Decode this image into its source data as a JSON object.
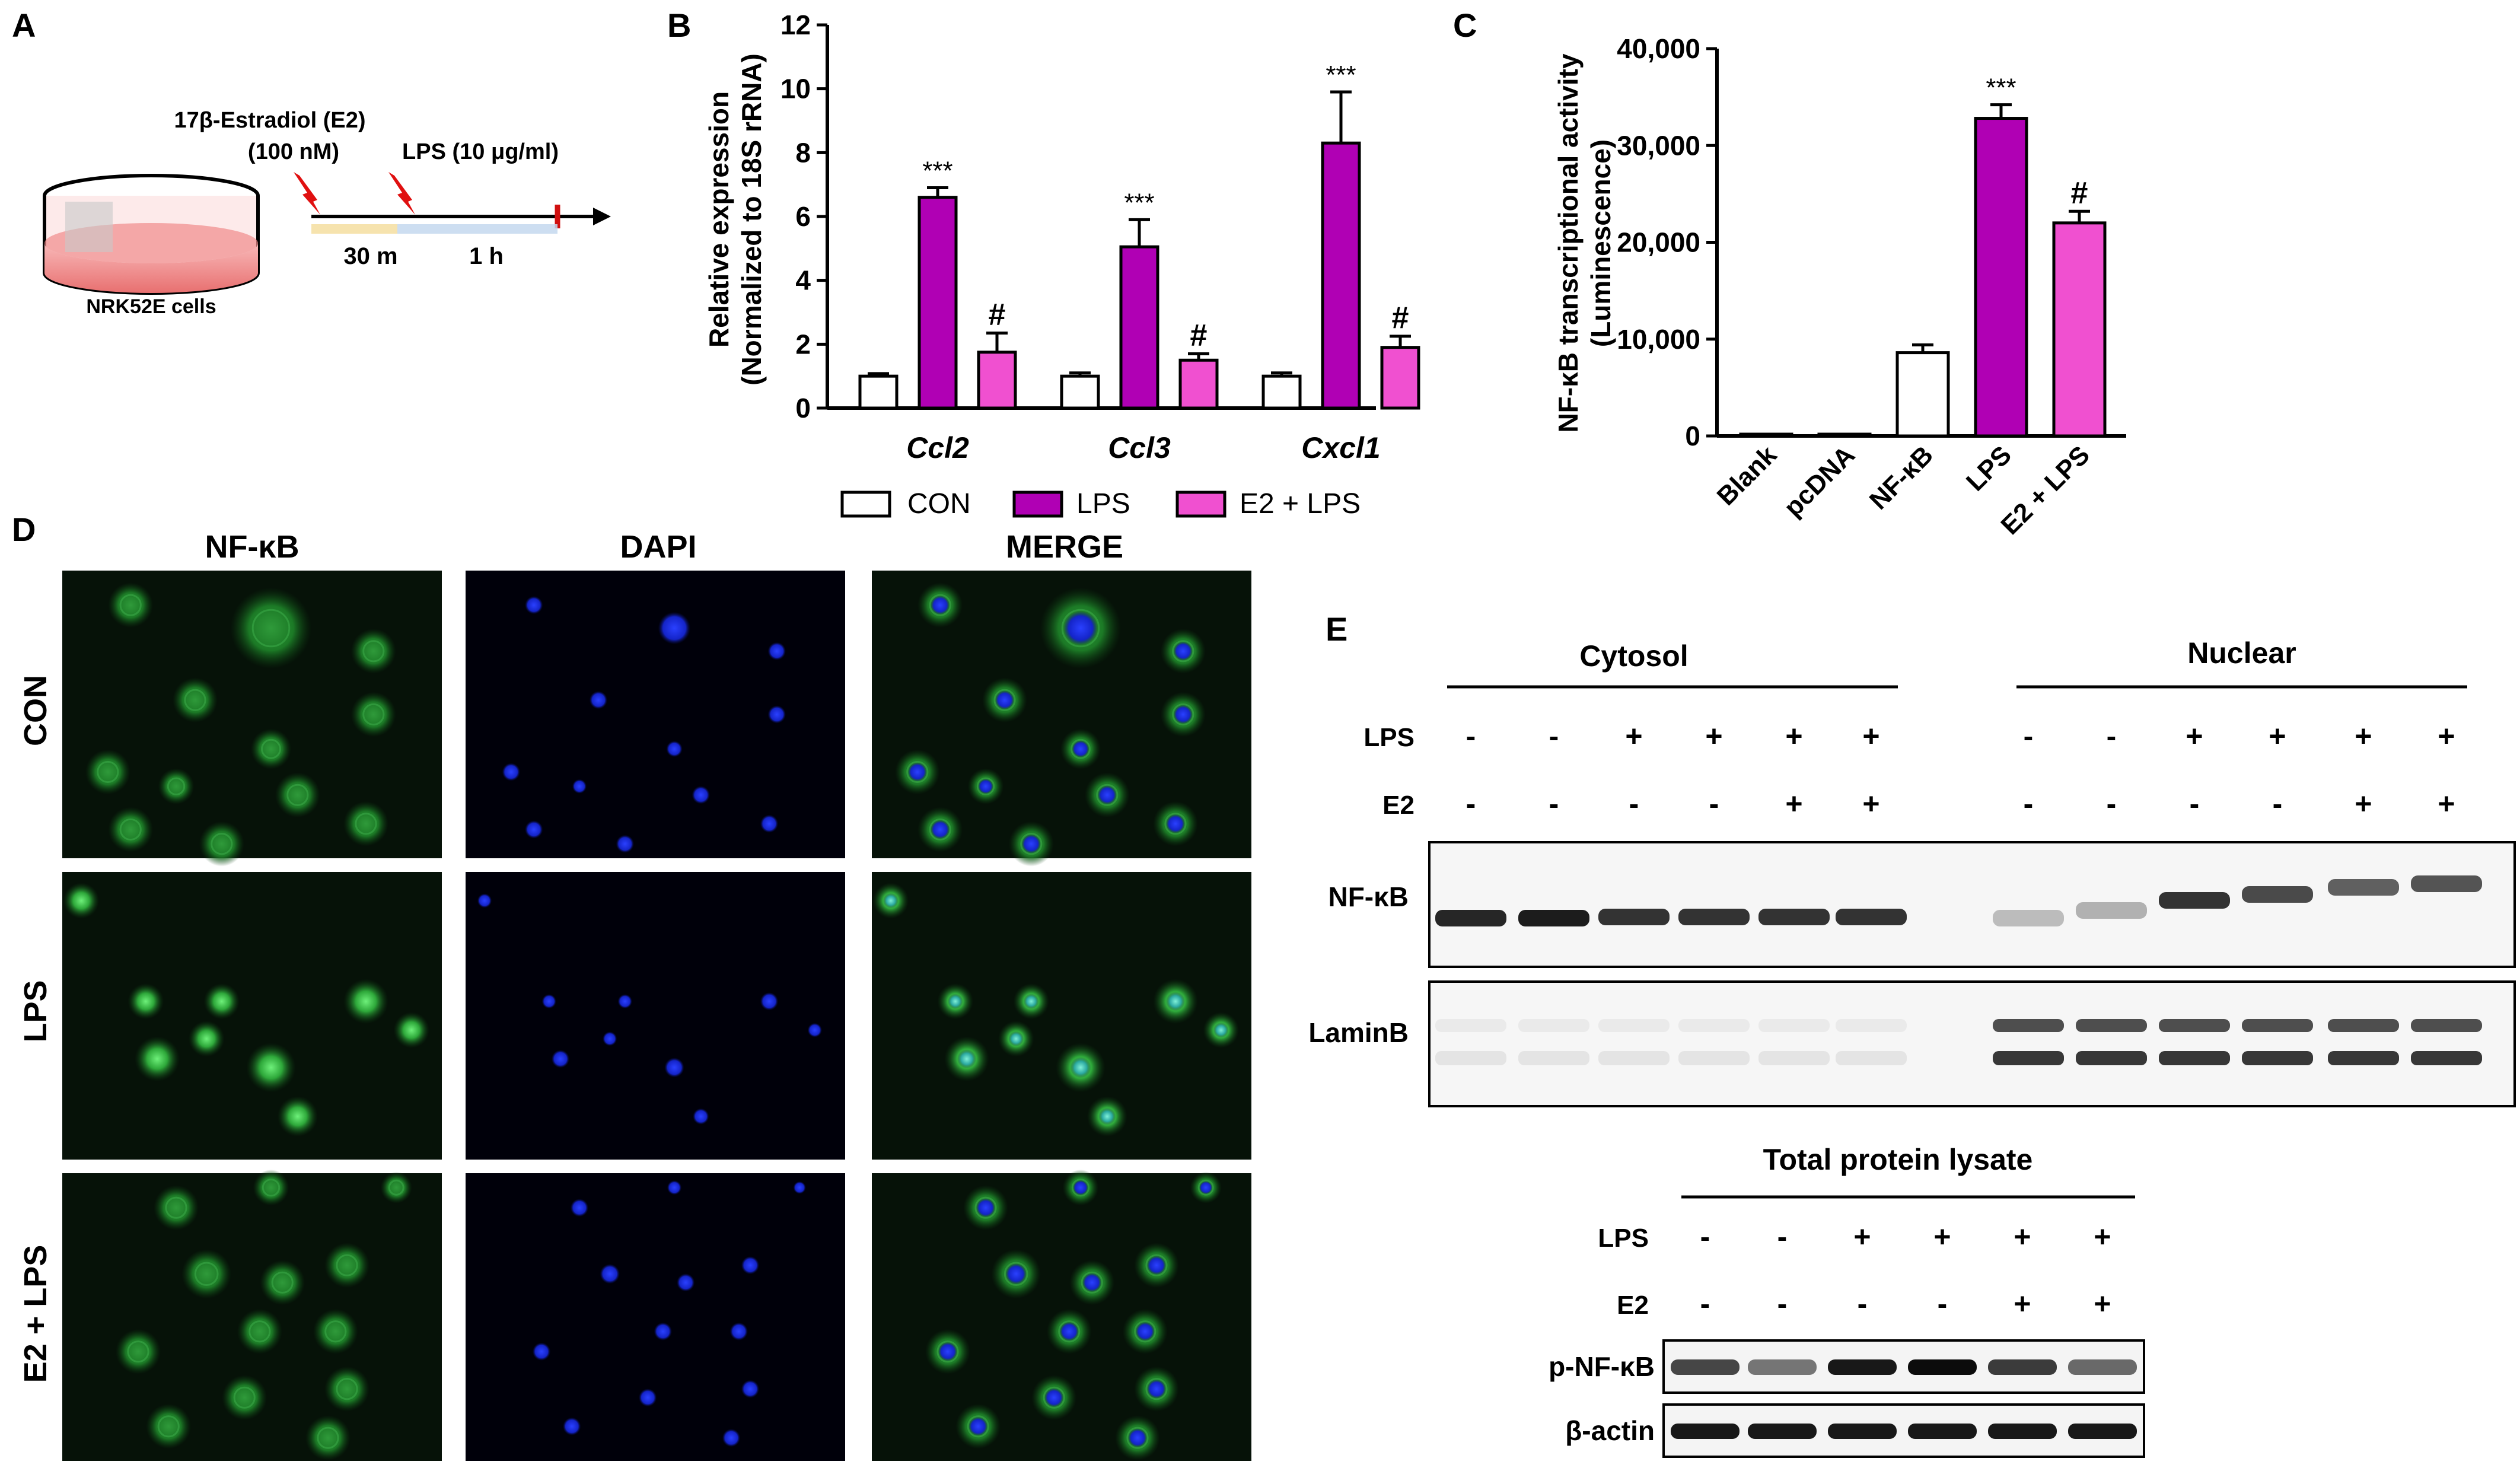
{
  "panel_labels": {
    "a": "A",
    "b": "B",
    "c": "C",
    "d": "D",
    "e": "E"
  },
  "panel_a": {
    "treatment_1_line1": "17β-Estradiol (E2)",
    "treatment_1_line2": "(100 nM)",
    "treatment_2": "LPS (10 μg/ml)",
    "time_1": "30 m",
    "time_2": "1 h",
    "cells": "NRK52E cells"
  },
  "panel_b": {
    "ylabel_line1": "Relative expression",
    "ylabel_line2": "(Normalized to 18S rRNA)",
    "legend": [
      "CON",
      "LPS",
      "E2 + LPS"
    ],
    "colors": {
      "con": "#ffffff",
      "lps": "#b000b4",
      "e2_lps": "#f050d0"
    }
  },
  "panel_c": {
    "ylabel_line1": "NF-κB transcriptional activity",
    "ylabel_line2": "(Luminescence)"
  },
  "chart_data": [
    {
      "type": "bar",
      "panel": "B",
      "categories": [
        "Ccl2",
        "Ccl3",
        "Cxcl1"
      ],
      "series": [
        {
          "name": "CON",
          "values": [
            1.0,
            1.0,
            1.0
          ],
          "errors": [
            0.08,
            0.1,
            0.1
          ],
          "labels": [
            "",
            "",
            ""
          ]
        },
        {
          "name": "LPS",
          "values": [
            6.6,
            5.05,
            8.3
          ],
          "errors": [
            0.3,
            0.85,
            1.6
          ],
          "labels": [
            "***",
            "***",
            "***"
          ]
        },
        {
          "name": "E2 + LPS",
          "values": [
            1.75,
            1.5,
            1.9
          ],
          "errors": [
            0.6,
            0.2,
            0.35
          ],
          "labels": [
            "#",
            "#",
            "#"
          ]
        }
      ],
      "ylim": [
        0,
        12
      ],
      "yticks": [
        "0",
        "2",
        "4",
        "6",
        "8",
        "10",
        "12"
      ]
    },
    {
      "type": "bar",
      "panel": "C",
      "categories": [
        "Blank",
        "pcDNA",
        "NF-κB",
        "LPS",
        "E2 + LPS"
      ],
      "values": [
        0,
        0,
        8600,
        32800,
        22000
      ],
      "errors": [
        0,
        0,
        800,
        1400,
        1200
      ],
      "labels": [
        "",
        "",
        "",
        "***",
        "#"
      ],
      "colors": [
        "#ffffff",
        "#ffffff",
        "#ffffff",
        "#b000b4",
        "#f050d0"
      ],
      "ylim": [
        0,
        40000
      ],
      "yticks": [
        "0",
        "10,000",
        "20,000",
        "30,000",
        "40,000"
      ]
    }
  ],
  "panel_d": {
    "columns": [
      "NF-κB",
      "DAPI",
      "MERGE"
    ],
    "rows": [
      "CON",
      "LPS",
      "E2 + LPS"
    ]
  },
  "panel_e": {
    "cytosol": "Cytosol",
    "nuclear": "Nuclear",
    "lps_label": "LPS",
    "e2_label": "E2",
    "lps_signs": [
      "-",
      "-",
      "+",
      "+",
      "+",
      "+",
      "-",
      "-",
      "+",
      "+",
      "+",
      "+"
    ],
    "e2_signs": [
      "-",
      "-",
      "-",
      "-",
      "+",
      "+",
      "-",
      "-",
      "-",
      "-",
      "+",
      "+"
    ],
    "blot1": "NF-κB",
    "blot2": "LaminB",
    "total_title": "Total protein lysate",
    "total_lps_signs": [
      "-",
      "-",
      "+",
      "+",
      "+",
      "+"
    ],
    "total_e2_signs": [
      "-",
      "-",
      "-",
      "-",
      "+",
      "+"
    ],
    "blot3": "p-NF-κB",
    "blot4": "β-actin"
  }
}
